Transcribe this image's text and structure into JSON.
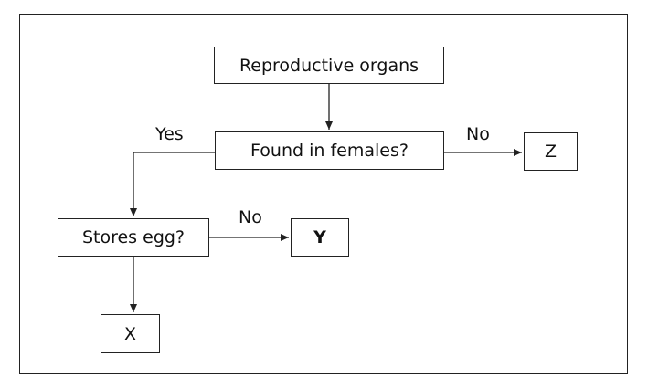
{
  "nodes": {
    "root": "Reproductive organs",
    "question_female": "Found in females?",
    "question_egg": "Stores egg?",
    "x": "X",
    "y": "Y",
    "z": "Z"
  },
  "edges": {
    "yes_label": "Yes",
    "no_label_1": "No",
    "no_label_2": "No"
  }
}
